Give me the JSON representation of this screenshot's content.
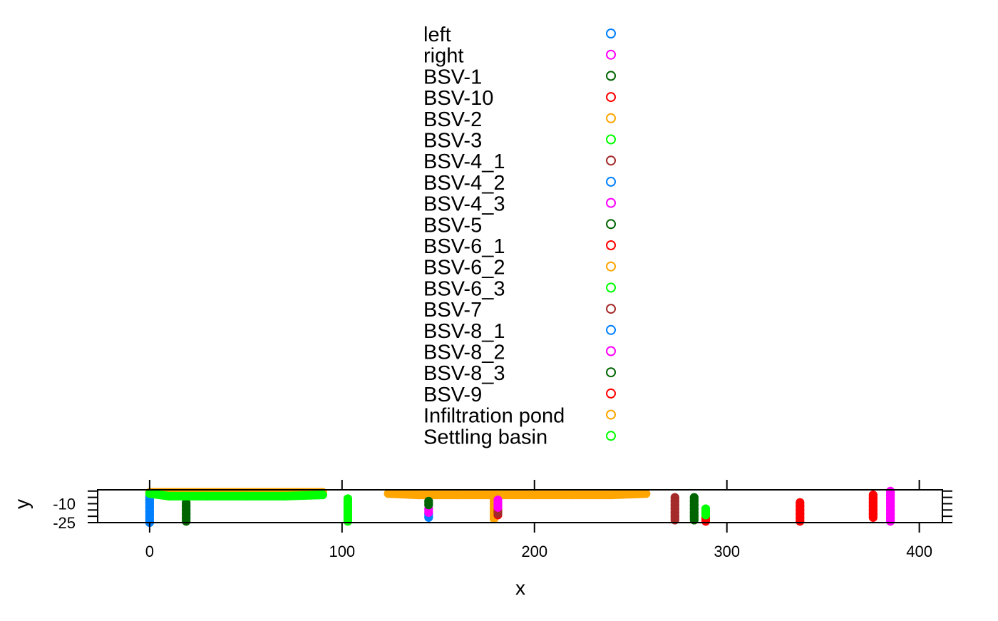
{
  "chart_data": {
    "type": "scatter",
    "title": "",
    "xlabel": "x",
    "ylabel": "y",
    "xlim": [
      -27,
      412
    ],
    "ylim": [
      -25,
      1
    ],
    "x_ticks": [
      0,
      100,
      200,
      300,
      400
    ],
    "y_ticks": [
      -10,
      -25
    ],
    "y_tick_labels": [
      "-10",
      "-25"
    ],
    "grid": false,
    "legend_position": "top",
    "colors": {
      "blue": "#0080ff",
      "magenta": "#ff00ff",
      "darkgreen": "#006400",
      "red": "#ff0000",
      "orange": "#ffa500",
      "green": "#00ff00",
      "brown": "#a52a2a"
    },
    "series": [
      {
        "name": "left",
        "color": "#0080ff",
        "points": [
          [
            0,
            -4
          ],
          [
            0,
            -7
          ],
          [
            0,
            -10
          ],
          [
            0,
            -13
          ],
          [
            0,
            -16
          ],
          [
            0,
            -19
          ],
          [
            0,
            -22
          ],
          [
            0,
            -25
          ]
        ]
      },
      {
        "name": "right",
        "color": "#ff00ff",
        "points": [
          [
            385,
            0
          ],
          [
            385,
            -3
          ],
          [
            385,
            -6
          ],
          [
            385,
            -9
          ],
          [
            385,
            -12
          ],
          [
            385,
            -15
          ],
          [
            385,
            -18
          ],
          [
            385,
            -21
          ],
          [
            385,
            -24
          ]
        ]
      },
      {
        "name": "BSV-1",
        "color": "#006400",
        "points": [
          [
            19,
            -9
          ],
          [
            19,
            -12
          ],
          [
            19,
            -15
          ],
          [
            19,
            -18
          ],
          [
            19,
            -21
          ],
          [
            19,
            -24
          ]
        ]
      },
      {
        "name": "BSV-10",
        "color": "#ff0000",
        "points": [
          [
            338,
            -9
          ],
          [
            338,
            -12
          ],
          [
            338,
            -15
          ],
          [
            338,
            -18
          ],
          [
            338,
            -21
          ],
          [
            338,
            -24
          ]
        ]
      },
      {
        "name": "BSV-2",
        "color": "#ffa500",
        "points": [
          [
            124,
            -2
          ],
          [
            140,
            -3
          ],
          [
            160,
            -3
          ],
          [
            180,
            -3
          ],
          [
            200,
            -3
          ],
          [
            220,
            -3
          ],
          [
            240,
            -3
          ],
          [
            258,
            -2
          ],
          [
            179,
            -6
          ],
          [
            179,
            -10
          ],
          [
            179,
            -14
          ],
          [
            179,
            -18
          ],
          [
            179,
            -22
          ]
        ]
      },
      {
        "name": "BSV-3",
        "color": "#00ff00",
        "points": [
          [
            103,
            -6
          ],
          [
            103,
            -9
          ],
          [
            103,
            -12
          ],
          [
            103,
            -15
          ],
          [
            103,
            -18
          ],
          [
            103,
            -21
          ],
          [
            103,
            -24
          ]
        ]
      },
      {
        "name": "BSV-4_1",
        "color": "#a52a2a",
        "points": [
          [
            273,
            -5
          ],
          [
            273,
            -8
          ],
          [
            273,
            -11
          ],
          [
            273,
            -14
          ],
          [
            273,
            -17
          ],
          [
            273,
            -20
          ],
          [
            273,
            -23
          ]
        ]
      },
      {
        "name": "BSV-4_2",
        "color": "#0080ff",
        "points": [
          [
            145,
            -18
          ],
          [
            145,
            -21
          ]
        ]
      },
      {
        "name": "BSV-4_3",
        "color": "#ff00ff",
        "points": [
          [
            145,
            -14
          ],
          [
            145,
            -17
          ]
        ]
      },
      {
        "name": "BSV-5",
        "color": "#006400",
        "points": [
          [
            145,
            -8
          ],
          [
            145,
            -11
          ]
        ]
      },
      {
        "name": "BSV-6_1",
        "color": "#ff0000",
        "points": [
          [
            181,
            -13
          ],
          [
            181,
            -16
          ],
          [
            181,
            -19
          ]
        ]
      },
      {
        "name": "BSV-6_2",
        "color": "#ffa500",
        "points": [
          [
            181,
            -10
          ],
          [
            181,
            -17
          ]
        ]
      },
      {
        "name": "BSV-6_3",
        "color": "#00ff00",
        "points": [
          [
            181,
            -9
          ]
        ]
      },
      {
        "name": "BSV-7",
        "color": "#a52a2a",
        "points": [
          [
            181,
            -15
          ],
          [
            181,
            -18
          ]
        ]
      },
      {
        "name": "BSV-8_1",
        "color": "#0080ff",
        "points": [
          [
            181,
            -12
          ]
        ]
      },
      {
        "name": "BSV-8_2",
        "color": "#ff00ff",
        "points": [
          [
            181,
            -7
          ],
          [
            181,
            -10
          ],
          [
            181,
            -13
          ]
        ]
      },
      {
        "name": "BSV-8_3",
        "color": "#006400",
        "points": [
          [
            283,
            -5
          ],
          [
            283,
            -8
          ],
          [
            283,
            -11
          ],
          [
            283,
            -14
          ],
          [
            283,
            -17
          ],
          [
            283,
            -20
          ],
          [
            283,
            -23
          ]
        ]
      },
      {
        "name": "BSV-9",
        "color": "#ff0000",
        "points": [
          [
            376,
            -3
          ],
          [
            376,
            -6
          ],
          [
            376,
            -9
          ],
          [
            376,
            -12
          ],
          [
            376,
            -15
          ],
          [
            376,
            -18
          ],
          [
            376,
            -21
          ],
          [
            289,
            -21
          ],
          [
            289,
            -24
          ]
        ]
      },
      {
        "name": "Infiltration pond",
        "color": "#ffa500",
        "points": [
          [
            0,
            -1
          ],
          [
            15,
            -1
          ],
          [
            30,
            -1
          ],
          [
            60,
            -1
          ],
          [
            90,
            -1
          ]
        ]
      },
      {
        "name": "Settling basin",
        "color": "#00ff00",
        "points": [
          [
            0,
            -2
          ],
          [
            10,
            -4
          ],
          [
            30,
            -4
          ],
          [
            50,
            -4
          ],
          [
            70,
            -4
          ],
          [
            90,
            -3
          ],
          [
            289,
            -14
          ],
          [
            289,
            -17
          ],
          [
            289,
            -19
          ]
        ]
      }
    ]
  }
}
